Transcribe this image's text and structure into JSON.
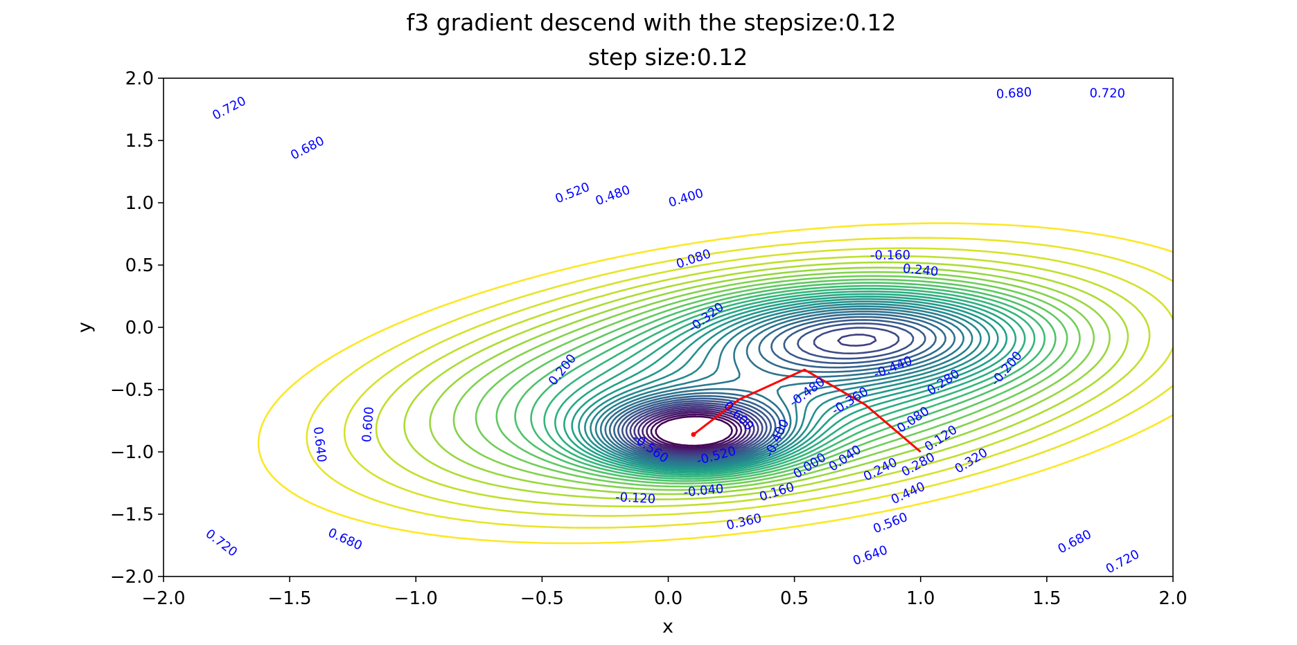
{
  "chart_data": {
    "type": "contour",
    "suptitle": "f3 gradient descend with the stepsize:0.12",
    "title": "step size:0.12",
    "xlabel": "x",
    "ylabel": "y",
    "xlim": [
      -2.0,
      2.0
    ],
    "ylim": [
      -2.0,
      2.0
    ],
    "xticks": [
      "−2.0",
      "−1.5",
      "−1.0",
      "−0.5",
      "0.0",
      "0.5",
      "1.0",
      "1.5",
      "2.0"
    ],
    "yticks": [
      "−2.0",
      "−1.5",
      "−1.0",
      "−0.5",
      "0.0",
      "0.5",
      "1.0",
      "1.5",
      "2.0"
    ],
    "colormap": "viridis",
    "level_min": -0.56,
    "level_max": 0.72,
    "level_step": 0.04,
    "grid": false,
    "path_color": "#ff0000",
    "label_color": "#0000ff",
    "descent_path": [
      {
        "x": 1.0,
        "y": -1.0
      },
      {
        "x": 0.78,
        "y": -0.62
      },
      {
        "x": 0.54,
        "y": -0.34
      },
      {
        "x": 0.28,
        "y": -0.58
      },
      {
        "x": 0.1,
        "y": -0.86
      }
    ],
    "contour_labels": [
      {
        "text": "0.720",
        "x": -1.74,
        "y": 1.76
      },
      {
        "text": "0.680",
        "x": -1.43,
        "y": 1.44
      },
      {
        "text": "0.520",
        "x": -0.38,
        "y": 1.08
      },
      {
        "text": "0.480",
        "x": -0.22,
        "y": 1.06
      },
      {
        "text": "0.400",
        "x": 0.07,
        "y": 1.04
      },
      {
        "text": "0.680",
        "x": 1.37,
        "y": 1.88
      },
      {
        "text": "0.720",
        "x": 1.74,
        "y": 1.88
      },
      {
        "text": "0.080",
        "x": 0.1,
        "y": 0.55
      },
      {
        "text": "-0.160",
        "x": 0.88,
        "y": 0.58
      },
      {
        "text": "0.240",
        "x": 1.0,
        "y": 0.46
      },
      {
        "text": "-0.320",
        "x": 0.15,
        "y": 0.08
      },
      {
        "text": "0.200",
        "x": -0.42,
        "y": -0.34
      },
      {
        "text": "-0.440",
        "x": 0.89,
        "y": -0.32
      },
      {
        "text": "0.280",
        "x": 1.09,
        "y": -0.44
      },
      {
        "text": "-0.200",
        "x": 1.34,
        "y": -0.33
      },
      {
        "text": "0.600",
        "x": -1.19,
        "y": -0.78
      },
      {
        "text": "0.640",
        "x": -1.38,
        "y": -0.94
      },
      {
        "text": "-0.480",
        "x": 0.55,
        "y": -0.52
      },
      {
        "text": "-0.360",
        "x": 0.72,
        "y": -0.59
      },
      {
        "text": "0.600",
        "x": 0.28,
        "y": -0.71
      },
      {
        "text": "0.080",
        "x": 0.97,
        "y": -0.74
      },
      {
        "text": "-0.560",
        "x": -0.07,
        "y": -0.97
      },
      {
        "text": "-0.400",
        "x": 0.43,
        "y": -0.89
      },
      {
        "text": "-0.520",
        "x": 0.19,
        "y": -1.03
      },
      {
        "text": "0.120",
        "x": 1.08,
        "y": -0.89
      },
      {
        "text": "0.000",
        "x": 0.56,
        "y": -1.11
      },
      {
        "text": "0.040",
        "x": 0.7,
        "y": -1.05
      },
      {
        "text": "0.320",
        "x": 1.2,
        "y": -1.07
      },
      {
        "text": "0.240",
        "x": 0.84,
        "y": -1.14
      },
      {
        "text": "0.280",
        "x": 0.99,
        "y": -1.1
      },
      {
        "text": "-0.120",
        "x": -0.13,
        "y": -1.37
      },
      {
        "text": "-0.040",
        "x": 0.14,
        "y": -1.31
      },
      {
        "text": "0.160",
        "x": 0.43,
        "y": -1.32
      },
      {
        "text": "0.440",
        "x": 0.95,
        "y": -1.33
      },
      {
        "text": "0.360",
        "x": 0.3,
        "y": -1.56
      },
      {
        "text": "0.560",
        "x": 0.88,
        "y": -1.57
      },
      {
        "text": "0.640",
        "x": 0.8,
        "y": -1.83
      },
      {
        "text": "0.680",
        "x": 1.61,
        "y": -1.72
      },
      {
        "text": "0.720",
        "x": 1.8,
        "y": -1.88
      },
      {
        "text": "0.720",
        "x": -1.77,
        "y": -1.73
      },
      {
        "text": "0.680",
        "x": -1.28,
        "y": -1.7
      }
    ]
  }
}
